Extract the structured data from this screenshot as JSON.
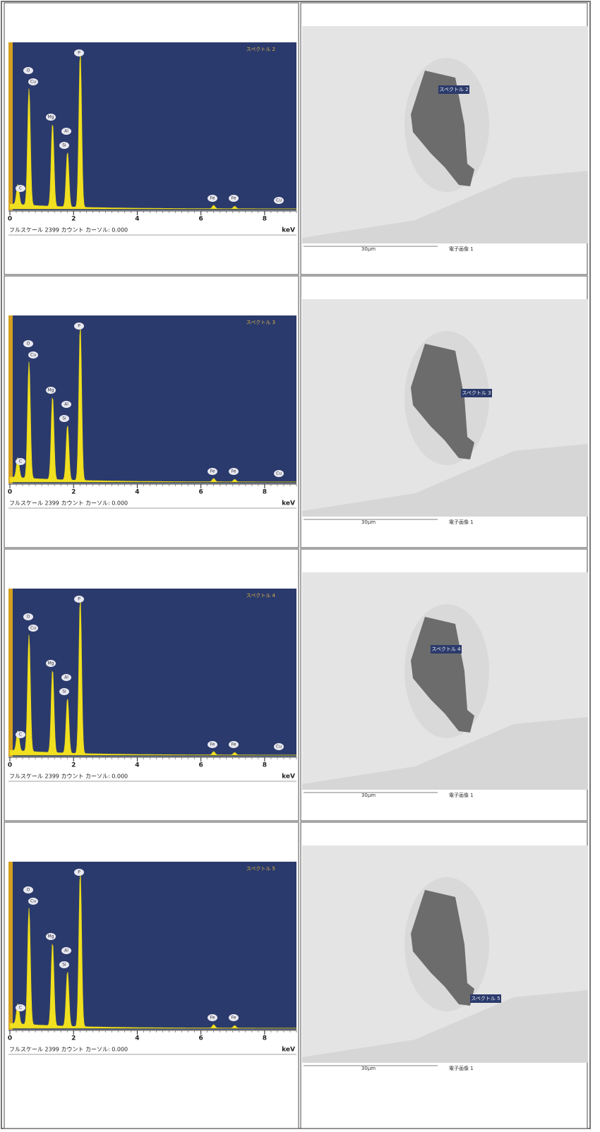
{
  "rows": [
    {
      "spectrum": {
        "title": "スペクトル 2",
        "xlim": [
          0,
          9
        ],
        "xticks": [
          0,
          2,
          4,
          6,
          8
        ],
        "unit": "keV",
        "footer": "フルスケール 2399 カウント カーソル: 0.000",
        "peak_labels": [
          "O",
          "Cu",
          "Mg",
          "Al",
          "Si",
          "P",
          "C",
          "Fe",
          "Fe",
          "Cu"
        ]
      },
      "image": {
        "marker_label": "スペクトル 2",
        "scale_label": "30µm",
        "caption": "電子画像 1"
      }
    },
    {
      "spectrum": {
        "title": "スペクトル 3",
        "xlim": [
          0,
          9
        ],
        "xticks": [
          0,
          2,
          4,
          6,
          8
        ],
        "unit": "keV",
        "footer": "フルスケール 2399 カウント カーソル: 0.000",
        "peak_labels": [
          "O",
          "Cu",
          "Mg",
          "Al",
          "Si",
          "P",
          "C",
          "Fe",
          "Fe",
          "Cu"
        ]
      },
      "image": {
        "marker_label": "スペクトル 3",
        "scale_label": "30µm",
        "caption": "電子画像 1"
      }
    },
    {
      "spectrum": {
        "title": "スペクトル 4",
        "xlim": [
          0,
          9
        ],
        "xticks": [
          0,
          2,
          4,
          6,
          8
        ],
        "unit": "keV",
        "footer": "フルスケール 2399 カウント カーソル: 0.000",
        "peak_labels": [
          "O",
          "Cu",
          "Mg",
          "Al",
          "Si",
          "P",
          "C",
          "Fe",
          "Fe",
          "Cu"
        ]
      },
      "image": {
        "marker_label": "スペクトル 4",
        "scale_label": "30µm",
        "caption": "電子画像 1"
      }
    },
    {
      "spectrum": {
        "title": "スペクトル 5",
        "xlim": [
          0,
          9
        ],
        "xticks": [
          0,
          2,
          4,
          6,
          8
        ],
        "unit": "keV",
        "footer": "フルスケール 2399 カウント カーソル: 0.000",
        "peak_labels": [
          "O",
          "Cu",
          "Mg",
          "Al",
          "Si",
          "P",
          "C",
          "Fe",
          "Fe"
        ]
      },
      "image": {
        "marker_label": "スペクトル 5",
        "scale_label": "30µm",
        "caption": "電子画像 1"
      }
    }
  ]
}
